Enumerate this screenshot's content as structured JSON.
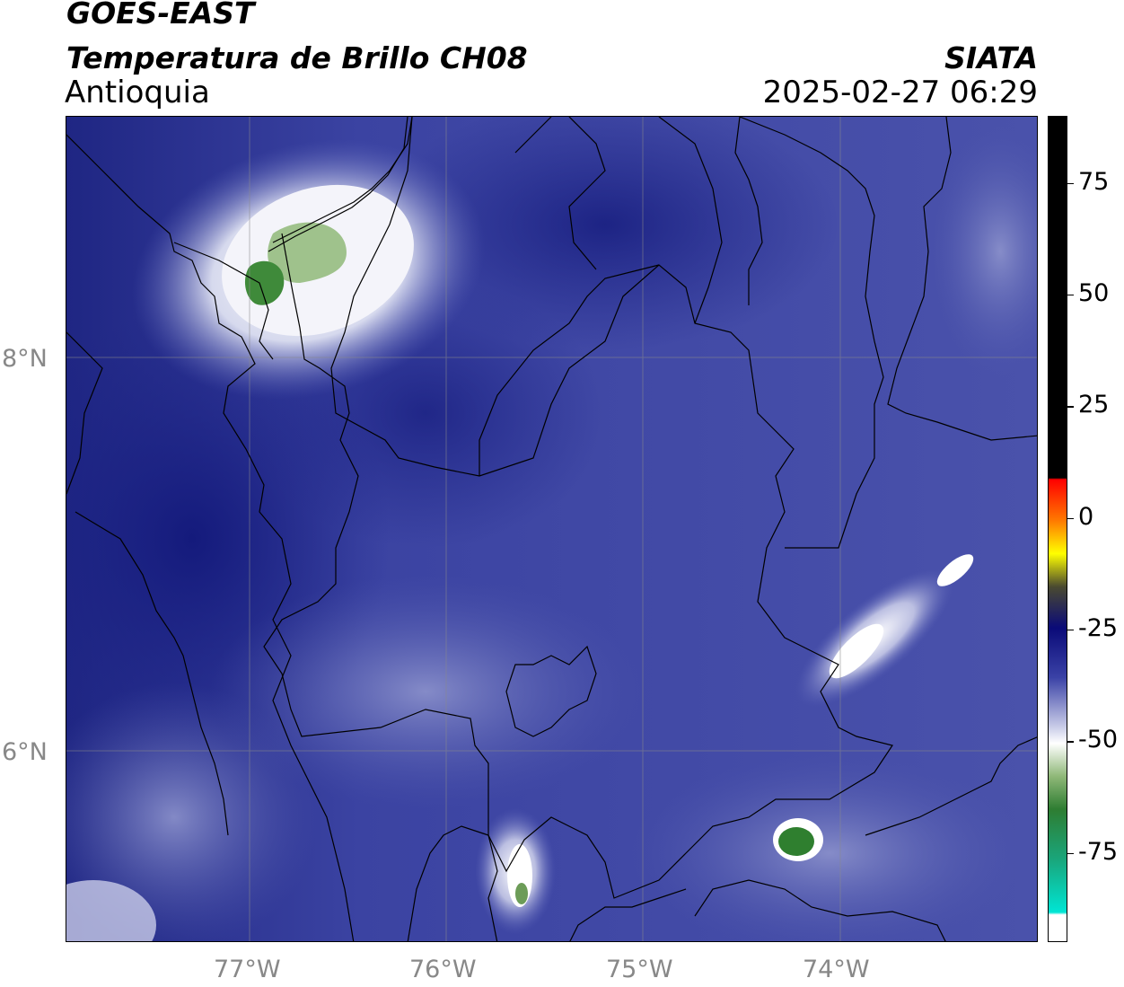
{
  "header": {
    "satellite": "GOES-EAST",
    "product": "Temperatura de Brillo CH08",
    "region": "Antioquia",
    "brand": "SIATA",
    "datetime": "2025-02-27 06:29"
  },
  "map": {
    "lat_labels": [
      "8°N",
      "6°N"
    ],
    "lon_labels": [
      "77°W",
      "76°W",
      "75°W",
      "74°W"
    ],
    "lon_range": [
      -77.93,
      -73.0
    ],
    "lat_range": [
      4.9,
      9.1
    ],
    "grid": true,
    "background_color": "#2d3590",
    "cloud_features": [
      {
        "name": "northwest-convective-cloud",
        "lon": -76.85,
        "lat": 8.55,
        "color": "#ffffff",
        "core_color": "#8fb878"
      },
      {
        "name": "northwest-core-green",
        "lon": -76.92,
        "lat": 8.45,
        "color": "#3f8a3a"
      },
      {
        "name": "east-cloud-band",
        "lon": -73.9,
        "lat": 6.5,
        "color": "#e8e8f4"
      },
      {
        "name": "southwest-cloud",
        "lon": -75.62,
        "lat": 5.15,
        "color": "#ffffff",
        "core_color": "#6c9c58"
      },
      {
        "name": "southeast-green-cell",
        "lon": -74.2,
        "lat": 5.42,
        "color": "#2f7f2f"
      }
    ]
  },
  "colorbar": {
    "tick_labels": [
      "75",
      "50",
      "25",
      "0",
      "-25",
      "-50",
      "-75"
    ],
    "tick_values": [
      75,
      50,
      25,
      0,
      -25,
      -50,
      -75
    ],
    "range": [
      -95,
      90
    ],
    "colors": {
      "black": "#000000",
      "red": "#ff0000",
      "orange": "#ff8c00",
      "yellow": "#ffff00",
      "navy": "#0a0a78",
      "blue": "#3a42a6",
      "white": "#ffffff",
      "green": "#2e7d32",
      "cyan": "#00e5d4"
    }
  }
}
